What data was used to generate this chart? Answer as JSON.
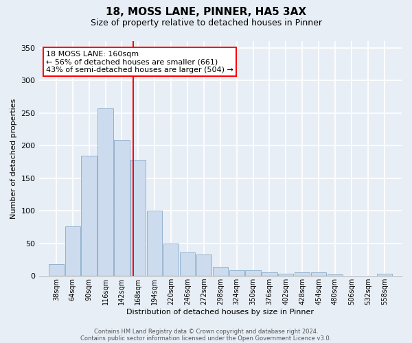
{
  "title1": "18, MOSS LANE, PINNER, HA5 3AX",
  "title2": "Size of property relative to detached houses in Pinner",
  "xlabel": "Distribution of detached houses by size in Pinner",
  "ylabel": "Number of detached properties",
  "categories": [
    "38sqm",
    "64sqm",
    "90sqm",
    "116sqm",
    "142sqm",
    "168sqm",
    "194sqm",
    "220sqm",
    "246sqm",
    "272sqm",
    "298sqm",
    "324sqm",
    "350sqm",
    "376sqm",
    "402sqm",
    "428sqm",
    "454sqm",
    "480sqm",
    "506sqm",
    "532sqm",
    "558sqm"
  ],
  "centers": [
    38,
    64,
    90,
    116,
    142,
    168,
    194,
    220,
    246,
    272,
    298,
    324,
    350,
    376,
    402,
    428,
    454,
    480,
    506,
    532,
    558
  ],
  "values": [
    18,
    76,
    184,
    257,
    208,
    178,
    100,
    50,
    36,
    33,
    14,
    9,
    9,
    5,
    3,
    5,
    5,
    2,
    0,
    0,
    3
  ],
  "bar_color": "#ccdcee",
  "bar_edge_color": "#88aac8",
  "vline_x": 160,
  "bin_width": 25,
  "annotation_line1": "18 MOSS LANE: 160sqm",
  "annotation_line2": "← 56% of detached houses are smaller (661)",
  "annotation_line3": "43% of semi-detached houses are larger (504) →",
  "annotation_box_color": "white",
  "annotation_box_edge": "red",
  "vline_color": "red",
  "ylim": [
    0,
    360
  ],
  "yticks": [
    0,
    50,
    100,
    150,
    200,
    250,
    300,
    350
  ],
  "background_color": "#e8eef6",
  "grid_color": "white",
  "footer1": "Contains HM Land Registry data © Crown copyright and database right 2024.",
  "footer2": "Contains public sector information licensed under the Open Government Licence v3.0.",
  "title1_fontsize": 11,
  "title2_fontsize": 9,
  "xlabel_fontsize": 8,
  "ylabel_fontsize": 8,
  "tick_fontsize": 7,
  "footer_fontsize": 6,
  "ann_fontsize": 8
}
